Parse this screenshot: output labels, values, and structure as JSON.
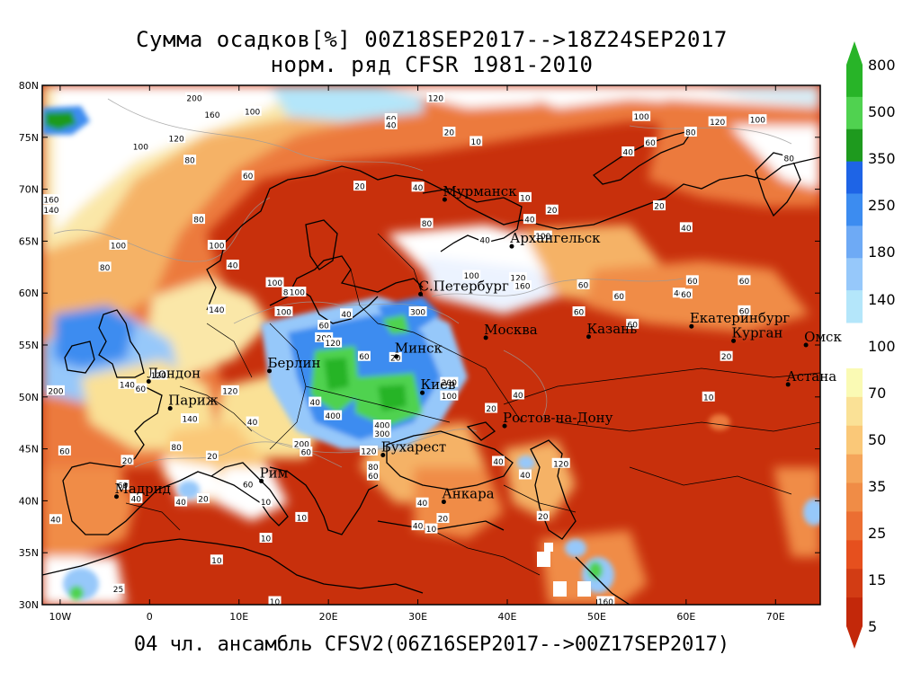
{
  "title": {
    "line1": "Сумма осадков[%] 00Z18SEP2017-->18Z24SEP2017",
    "line2": "норм. ряд CFSR 1981-2010"
  },
  "footer": "04 чл. ансамбль CFSV2(06Z16SEP2017-->00Z17SEP2017)",
  "axes": {
    "lat_ticks": [
      "80N",
      "75N",
      "70N",
      "65N",
      "60N",
      "55N",
      "50N",
      "45N",
      "40N",
      "35N",
      "30N"
    ],
    "lon_ticks": [
      "10W",
      "0",
      "10E",
      "20E",
      "30E",
      "40E",
      "50E",
      "60E",
      "70E"
    ],
    "lon_range": [
      -12,
      75
    ],
    "lat_range": [
      30,
      80
    ]
  },
  "colorbar": {
    "labels": [
      "800",
      "500",
      "350",
      "250",
      "180",
      "140",
      "100",
      "70",
      "50",
      "35",
      "25",
      "15",
      "5"
    ],
    "upper_colors": [
      "#28b428",
      "#50d250",
      "#1e9a1e",
      "#1e64e6",
      "#3c8cf0",
      "#6eaaf5",
      "#96c8fa",
      "#b4e6fa"
    ],
    "lower_colors": [
      "#fafab4",
      "#fae196",
      "#fac878",
      "#f5a55a",
      "#f08c46",
      "#eb6e32",
      "#e6501e",
      "#d23c14",
      "#c3280a"
    ]
  },
  "cities": [
    {
      "name": "Мурманск",
      "lon": 33.0,
      "lat": 69.0
    },
    {
      "name": "Архангельск",
      "lon": 40.5,
      "lat": 64.5
    },
    {
      "name": "С.Петербург",
      "lon": 30.3,
      "lat": 59.9
    },
    {
      "name": "Москва",
      "lon": 37.6,
      "lat": 55.7
    },
    {
      "name": "Казань",
      "lon": 49.1,
      "lat": 55.8
    },
    {
      "name": "Екатеринбург",
      "lon": 60.6,
      "lat": 56.8
    },
    {
      "name": "Курган",
      "lon": 65.3,
      "lat": 55.4
    },
    {
      "name": "Омск",
      "lon": 73.4,
      "lat": 55.0
    },
    {
      "name": "Астана",
      "lon": 71.4,
      "lat": 51.2
    },
    {
      "name": "Минск",
      "lon": 27.6,
      "lat": 53.9
    },
    {
      "name": "Берлин",
      "lon": 13.4,
      "lat": 52.5
    },
    {
      "name": "Лондон",
      "lon": -0.1,
      "lat": 51.5
    },
    {
      "name": "Париж",
      "lon": 2.3,
      "lat": 48.9
    },
    {
      "name": "Киев",
      "lon": 30.5,
      "lat": 50.4
    },
    {
      "name": "Ростов-на-Дону",
      "lon": 39.7,
      "lat": 47.2
    },
    {
      "name": "Бухарест",
      "lon": 26.1,
      "lat": 44.4
    },
    {
      "name": "Рим",
      "lon": 12.5,
      "lat": 41.9
    },
    {
      "name": "Мадрид",
      "lon": -3.7,
      "lat": 40.4
    },
    {
      "name": "Анкара",
      "lon": 32.9,
      "lat": 39.9
    }
  ],
  "contour_labels": [
    {
      "v": "200",
      "lon": 5,
      "lat": 78.8
    },
    {
      "v": "160",
      "lon": 7,
      "lat": 77.2
    },
    {
      "v": "100",
      "lon": 11.5,
      "lat": 77.5
    },
    {
      "v": "120",
      "lon": 32,
      "lat": 78.8
    },
    {
      "v": "60",
      "lon": 27,
      "lat": 76.8
    },
    {
      "v": "40",
      "lon": 27,
      "lat": 76.2
    },
    {
      "v": "20",
      "lon": 33.5,
      "lat": 75.5
    },
    {
      "v": "10",
      "lon": 36.5,
      "lat": 74.6
    },
    {
      "v": "100",
      "lon": 55,
      "lat": 77
    },
    {
      "v": "120",
      "lon": 63.5,
      "lat": 76.5
    },
    {
      "v": "100",
      "lon": 68,
      "lat": 76.7
    },
    {
      "v": "80",
      "lon": 60.5,
      "lat": 75.5
    },
    {
      "v": "60",
      "lon": 56,
      "lat": 74.5
    },
    {
      "v": "40",
      "lon": 53.5,
      "lat": 73.6
    },
    {
      "v": "80",
      "lon": 71.5,
      "lat": 73
    },
    {
      "v": "20",
      "lon": 57,
      "lat": 68.4
    },
    {
      "v": "20",
      "lon": 45,
      "lat": 68
    },
    {
      "v": "10",
      "lon": 42,
      "lat": 69.2
    },
    {
      "v": "100",
      "lon": -1,
      "lat": 74.1
    },
    {
      "v": "120",
      "lon": 3,
      "lat": 74.9
    },
    {
      "v": "80",
      "lon": 4.5,
      "lat": 72.8
    },
    {
      "v": "60",
      "lon": 11,
      "lat": 71.3
    },
    {
      "v": "20",
      "lon": 23.5,
      "lat": 70.3
    },
    {
      "v": "40",
      "lon": 30,
      "lat": 70.2
    },
    {
      "v": "160",
      "lon": -11,
      "lat": 69
    },
    {
      "v": "140",
      "lon": -11,
      "lat": 68
    },
    {
      "v": "80",
      "lon": 5.5,
      "lat": 67.1
    },
    {
      "v": "100",
      "lon": -3.5,
      "lat": 64.6
    },
    {
      "v": "80",
      "lon": -5,
      "lat": 62.5
    },
    {
      "v": "100",
      "lon": 7.5,
      "lat": 64.6
    },
    {
      "v": "40",
      "lon": 9.3,
      "lat": 62.7
    },
    {
      "v": "80",
      "lon": 31,
      "lat": 66.7
    },
    {
      "v": "40",
      "lon": 37.5,
      "lat": 65.1
    },
    {
      "v": "40",
      "lon": 42.5,
      "lat": 67.1
    },
    {
      "v": "100",
      "lon": 44,
      "lat": 65.5
    },
    {
      "v": "40",
      "lon": 60,
      "lat": 66.3
    },
    {
      "v": "100",
      "lon": 36,
      "lat": 61.7
    },
    {
      "v": "120",
      "lon": 41.2,
      "lat": 61.5
    },
    {
      "v": "160",
      "lon": 41.7,
      "lat": 60.7
    },
    {
      "v": "60",
      "lon": 48.5,
      "lat": 60.8
    },
    {
      "v": "60",
      "lon": 52.5,
      "lat": 59.7
    },
    {
      "v": "60",
      "lon": 60.7,
      "lat": 61.2
    },
    {
      "v": "40",
      "lon": 59.2,
      "lat": 60.0
    },
    {
      "v": "60",
      "lon": 60,
      "lat": 59.9
    },
    {
      "v": "60",
      "lon": 66.5,
      "lat": 61.2
    },
    {
      "v": "100",
      "lon": 14,
      "lat": 61
    },
    {
      "v": "80",
      "lon": 15.5,
      "lat": 60.1
    },
    {
      "v": "100",
      "lon": 16.5,
      "lat": 60.1
    },
    {
      "v": "100",
      "lon": 15,
      "lat": 58.2
    },
    {
      "v": "140",
      "lon": 7.5,
      "lat": 58.4
    },
    {
      "v": "60",
      "lon": 19.5,
      "lat": 56.9
    },
    {
      "v": "200",
      "lon": 19.5,
      "lat": 55.7
    },
    {
      "v": "40",
      "lon": 22,
      "lat": 58.0
    },
    {
      "v": "300",
      "lon": 30,
      "lat": 58.2
    },
    {
      "v": "120",
      "lon": 20.5,
      "lat": 55.2
    },
    {
      "v": "60",
      "lon": 24,
      "lat": 53.9
    },
    {
      "v": "20",
      "lon": 27.5,
      "lat": 53.8
    },
    {
      "v": "200",
      "lon": 33.5,
      "lat": 51.4
    },
    {
      "v": "100",
      "lon": 33.5,
      "lat": 50.1
    },
    {
      "v": "40",
      "lon": 41.2,
      "lat": 50.2
    },
    {
      "v": "20",
      "lon": 38.2,
      "lat": 48.9
    },
    {
      "v": "60",
      "lon": 48,
      "lat": 58.2
    },
    {
      "v": "60",
      "lon": 54,
      "lat": 57
    },
    {
      "v": "60",
      "lon": 66.5,
      "lat": 58.3
    },
    {
      "v": "20",
      "lon": 64.5,
      "lat": 53.9
    },
    {
      "v": "10",
      "lon": 62.5,
      "lat": 50.0
    },
    {
      "v": "120",
      "lon": 1,
      "lat": 52.1
    },
    {
      "v": "140",
      "lon": -2.5,
      "lat": 51.2
    },
    {
      "v": "60",
      "lon": -1,
      "lat": 50.8
    },
    {
      "v": "200",
      "lon": -10.5,
      "lat": 50.6
    },
    {
      "v": "120",
      "lon": 9,
      "lat": 50.6
    },
    {
      "v": "140",
      "lon": 4.5,
      "lat": 47.9
    },
    {
      "v": "40",
      "lon": 11.5,
      "lat": 47.6
    },
    {
      "v": "200",
      "lon": 17,
      "lat": 45.5
    },
    {
      "v": "400",
      "lon": 20.5,
      "lat": 48.2
    },
    {
      "v": "60",
      "lon": 17.5,
      "lat": 44.7
    },
    {
      "v": "120",
      "lon": 24.5,
      "lat": 44.8
    },
    {
      "v": "400",
      "lon": 26,
      "lat": 47.3
    },
    {
      "v": "300",
      "lon": 26,
      "lat": 46.5
    },
    {
      "v": "20",
      "lon": 7,
      "lat": 44.3
    },
    {
      "v": "80",
      "lon": 3,
      "lat": 45.2
    },
    {
      "v": "60",
      "lon": -9.5,
      "lat": 44.8
    },
    {
      "v": "20",
      "lon": -2.5,
      "lat": 43.9
    },
    {
      "v": "60",
      "lon": 11,
      "lat": 41.6
    },
    {
      "v": "80",
      "lon": 25,
      "lat": 43.3
    },
    {
      "v": "60",
      "lon": 25,
      "lat": 42.4
    },
    {
      "v": "10",
      "lon": 13,
      "lat": 39.9
    },
    {
      "v": "10",
      "lon": 17,
      "lat": 38.4
    },
    {
      "v": "10",
      "lon": 13,
      "lat": 36.4
    },
    {
      "v": "10",
      "lon": 7.5,
      "lat": 34.3
    },
    {
      "v": "40",
      "lon": -10.5,
      "lat": 38.2
    },
    {
      "v": "40",
      "lon": -1.5,
      "lat": 40.2
    },
    {
      "v": "20",
      "lon": 6,
      "lat": 40.2
    },
    {
      "v": "40",
      "lon": 3.5,
      "lat": 39.9
    },
    {
      "v": "60",
      "lon": -3,
      "lat": 41.5
    },
    {
      "v": "40",
      "lon": 39,
      "lat": 43.8
    },
    {
      "v": "40",
      "lon": 42,
      "lat": 42.5
    },
    {
      "v": "20",
      "lon": 44,
      "lat": 38.5
    },
    {
      "v": "120",
      "lon": 46,
      "lat": 43.6
    },
    {
      "v": "40",
      "lon": 30.5,
      "lat": 39.8
    },
    {
      "v": "20",
      "lon": 32.8,
      "lat": 38.3
    },
    {
      "v": "10",
      "lon": 31.5,
      "lat": 37.3
    },
    {
      "v": "40",
      "lon": 30,
      "lat": 37.6
    },
    {
      "v": "10",
      "lon": 14,
      "lat": 30.3
    },
    {
      "v": "160",
      "lon": 51,
      "lat": 30.3
    },
    {
      "v": "25",
      "lon": -3.5,
      "lat": 31.5
    },
    {
      "v": "40",
      "lon": 18.5,
      "lat": 49.5
    }
  ]
}
